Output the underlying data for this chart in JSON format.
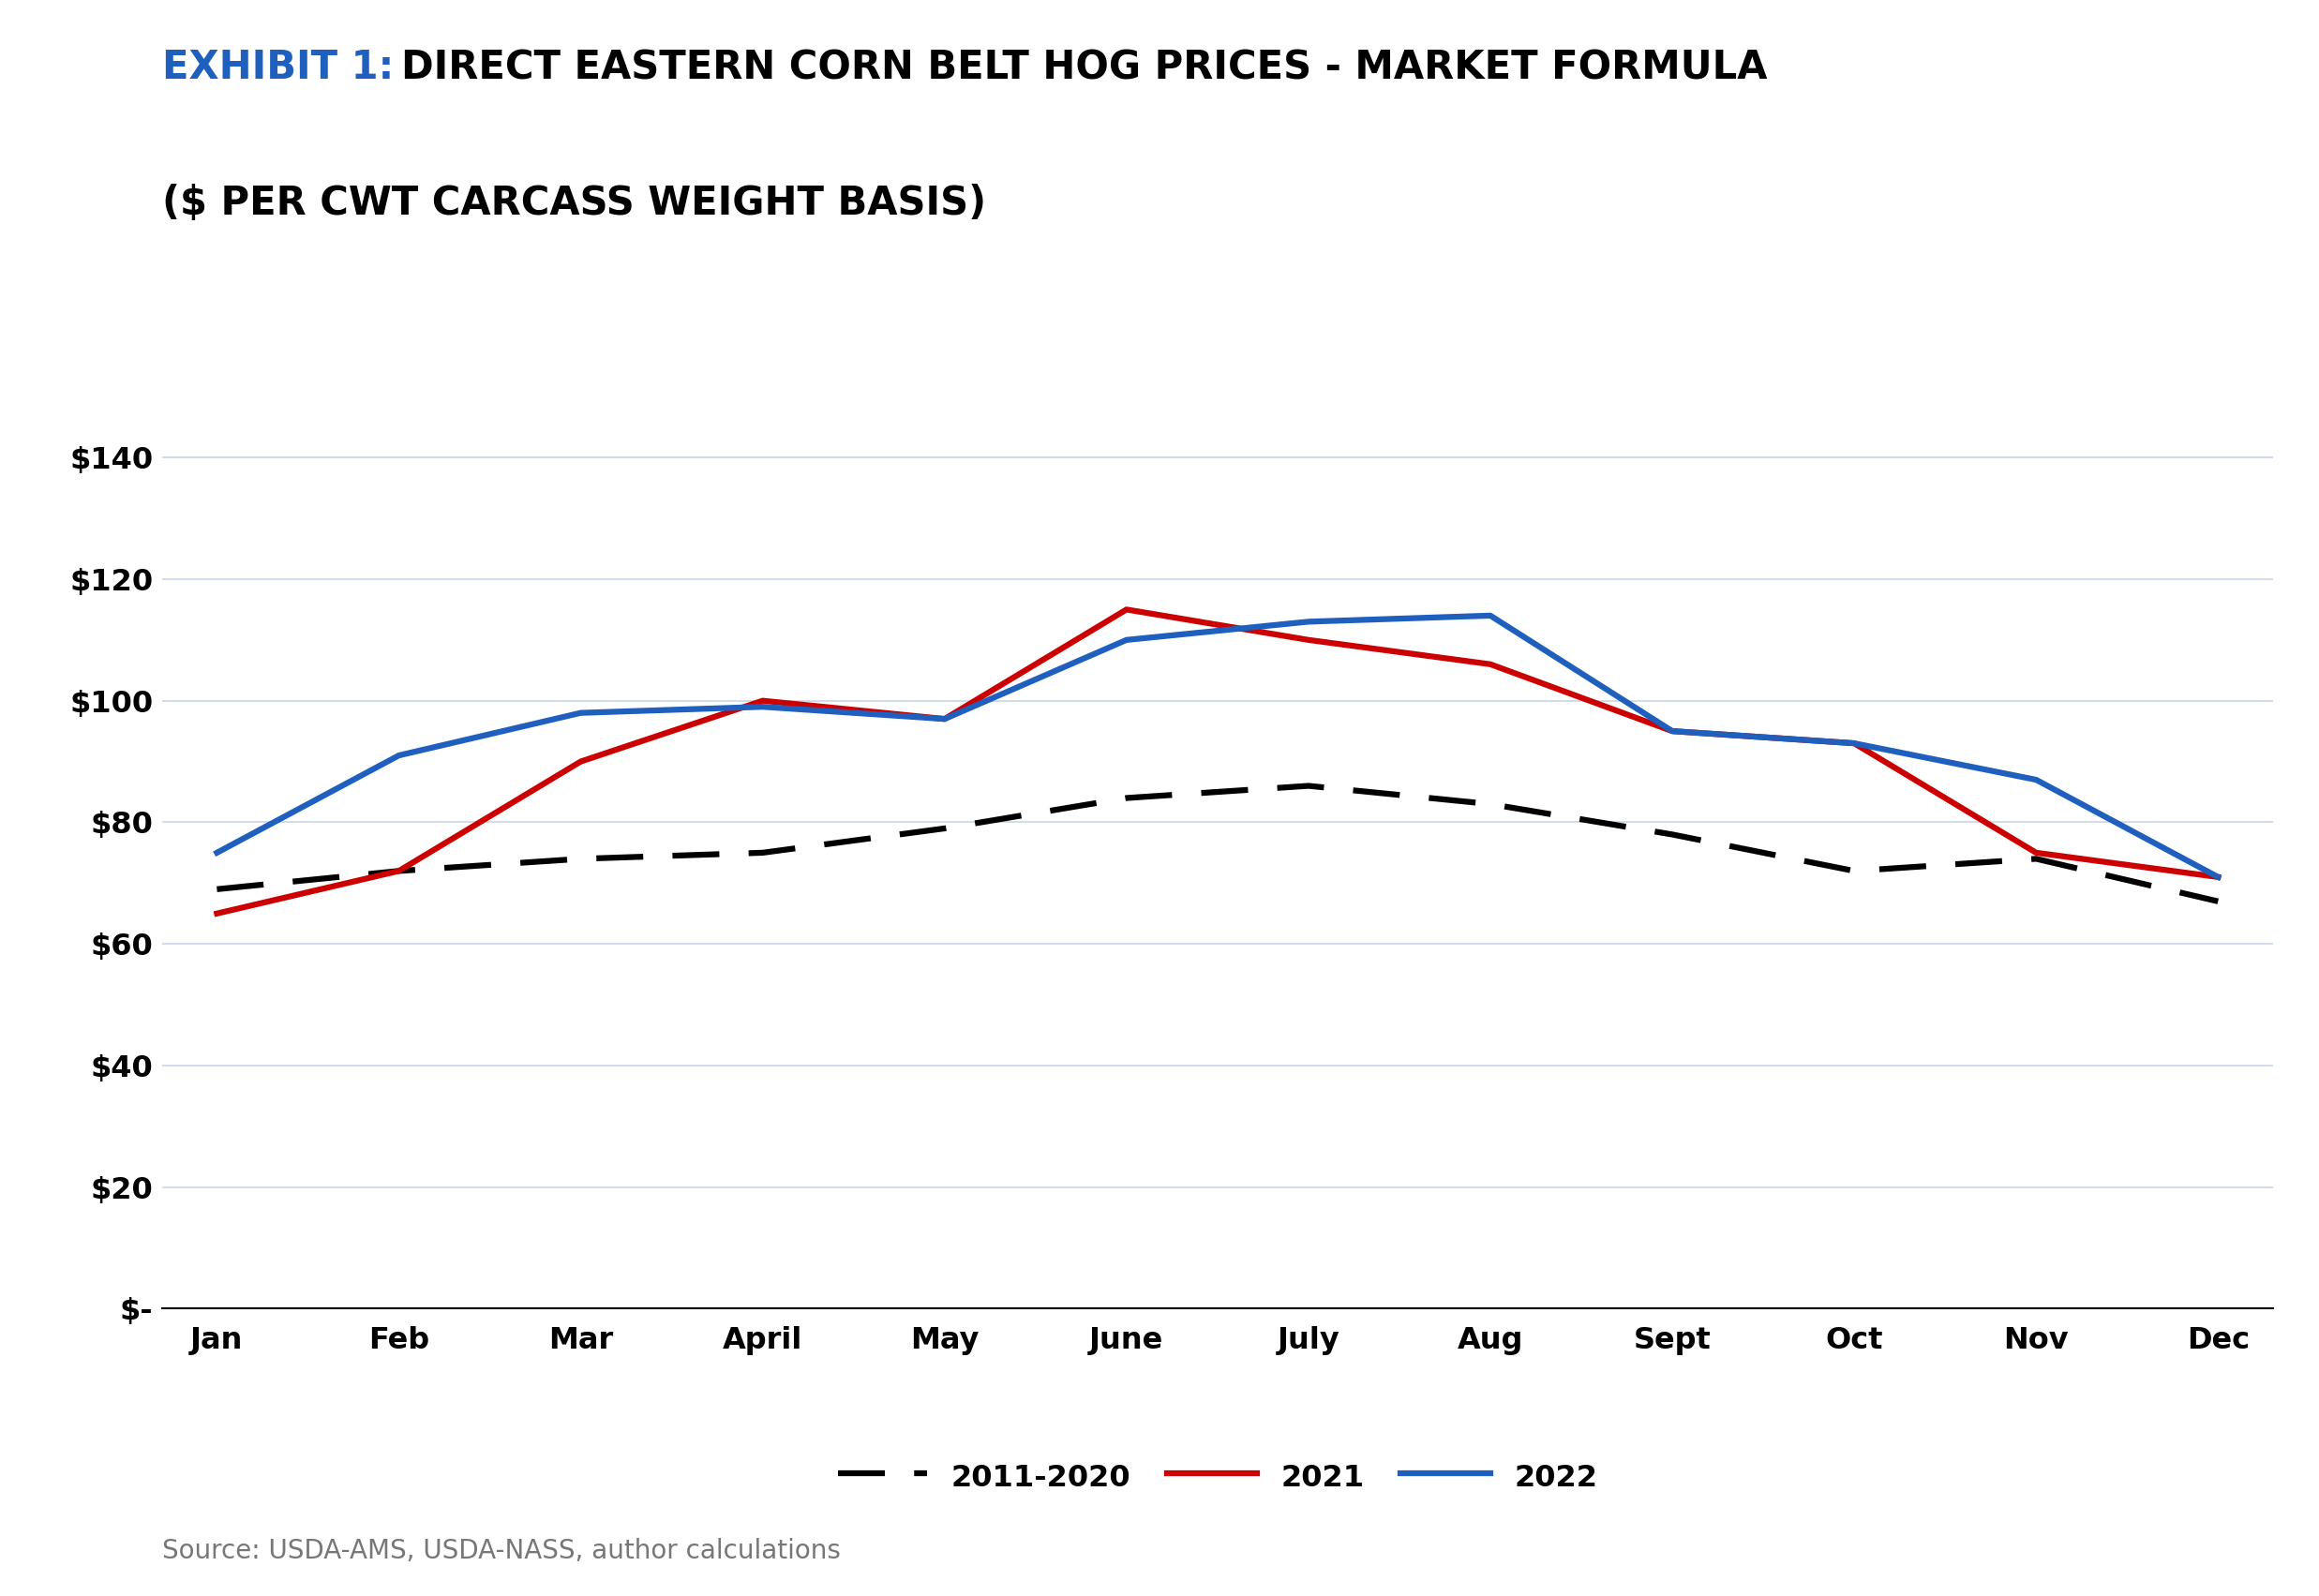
{
  "title_bold": "EXHIBIT 1:",
  "title_regular": "DIRECT EASTERN CORN BELT HOG PRICES - MARKET FORMULA",
  "title_line2": "($ PER CWT CARCASS WEIGHT BASIS)",
  "months": [
    "Jan",
    "Feb",
    "Mar",
    "April",
    "May",
    "June",
    "July",
    "Aug",
    "Sept",
    "Oct",
    "Nov",
    "Dec"
  ],
  "series_2011_2020": [
    69,
    72,
    74,
    75,
    79,
    84,
    86,
    83,
    78,
    72,
    74,
    67
  ],
  "series_2021": [
    65,
    72,
    90,
    100,
    97,
    115,
    110,
    106,
    95,
    93,
    75,
    71
  ],
  "series_2022": [
    75,
    91,
    98,
    99,
    97,
    110,
    113,
    114,
    95,
    93,
    87,
    71
  ],
  "color_2011_2020": "#000000",
  "color_2021": "#cc0000",
  "color_2022": "#1f5fbd",
  "legend_labels": [
    "2011-2020",
    "2021",
    "2022"
  ],
  "ytick_labels": [
    "$-",
    "$20",
    "$40",
    "$60",
    "$80",
    "$100",
    "$120",
    "$140"
  ],
  "ytick_values": [
    0,
    20,
    40,
    60,
    80,
    100,
    120,
    140
  ],
  "ylim": [
    0,
    147
  ],
  "source_text": "Source: USDA-AMS, USDA-NASS, author calculations",
  "title_color_bold": "#1f5fbd",
  "title_color_regular": "#000000",
  "title_fontsize": 30,
  "axis_fontsize": 23,
  "legend_fontsize": 23,
  "source_fontsize": 20,
  "linewidth": 4.5,
  "background_color": "#ffffff",
  "grid_color": "#c8d4e8"
}
